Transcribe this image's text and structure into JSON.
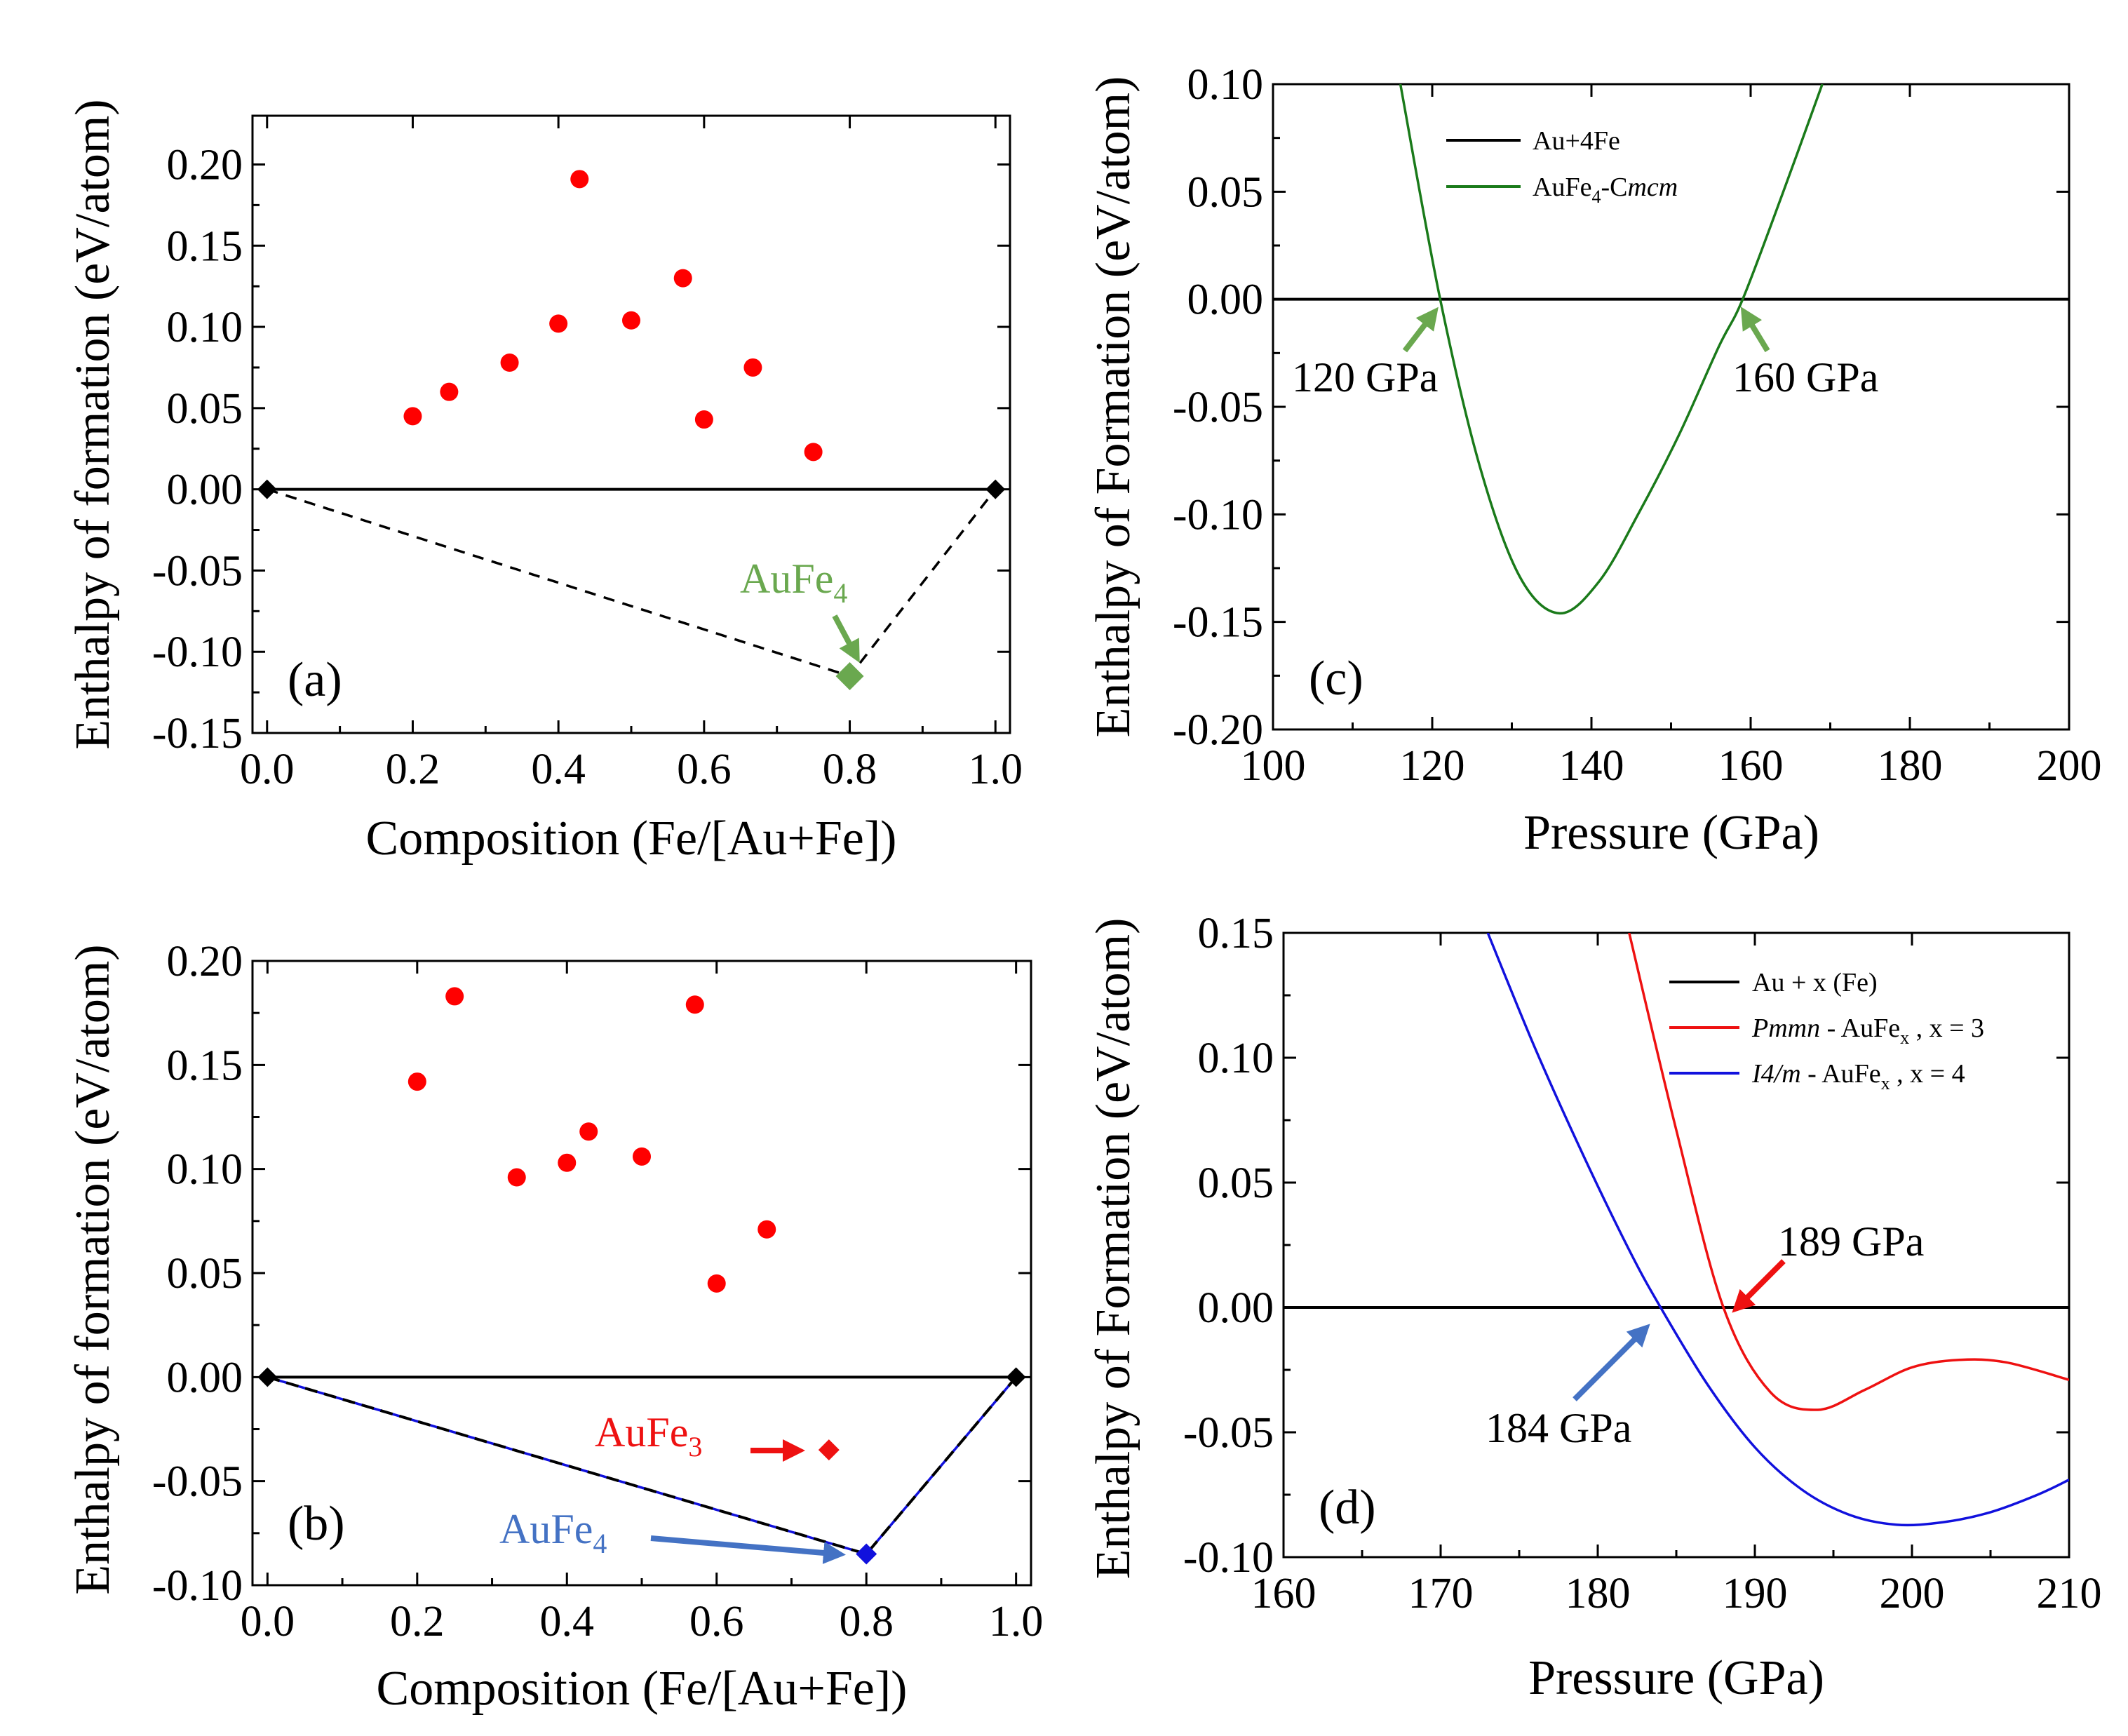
{
  "colors": {
    "unstable_point": "#ff0000",
    "hull_point": "#000000",
    "green": "#6aa84f",
    "curve_green": "#1a7a1a",
    "red": "#ee1111",
    "blue": "#1111dd",
    "annot_blue": "#4472c4"
  },
  "chart_data": [
    {
      "panel": "(a)",
      "type": "scatter",
      "xlabel": "Composition (Fe/[Au+Fe])",
      "ylabel": "Enthalpy of formation (eV/atom)",
      "xlim": [
        -0.02,
        1.02
      ],
      "ylim": [
        -0.15,
        0.23
      ],
      "xticks": [
        "0.0",
        "0.2",
        "0.4",
        "0.6",
        "0.8",
        "1.0"
      ],
      "yticks": [
        "-0.15",
        "-0.10",
        "-0.05",
        "0.00",
        "0.05",
        "0.10",
        "0.15",
        "0.20"
      ],
      "unstable_points": [
        {
          "x": 0.2,
          "y": 0.045
        },
        {
          "x": 0.25,
          "y": 0.06
        },
        {
          "x": 0.333,
          "y": 0.078
        },
        {
          "x": 0.4,
          "y": 0.102
        },
        {
          "x": 0.429,
          "y": 0.191
        },
        {
          "x": 0.5,
          "y": 0.104
        },
        {
          "x": 0.571,
          "y": 0.13
        },
        {
          "x": 0.6,
          "y": 0.043
        },
        {
          "x": 0.667,
          "y": 0.075
        },
        {
          "x": 0.75,
          "y": 0.023
        }
      ],
      "hull_endpoints": [
        {
          "x": 0.0,
          "y": 0.0
        },
        {
          "x": 1.0,
          "y": 0.0
        }
      ],
      "stable_points": [
        {
          "x": 0.8,
          "y": -0.115,
          "name": "AuFe4"
        }
      ],
      "annotations": [
        {
          "base": "AuFe",
          "sub": "4"
        }
      ]
    },
    {
      "panel": "(b)",
      "type": "scatter",
      "xlabel": "Composition (Fe/[Au+Fe])",
      "ylabel": "Enthalpy of formation (eV/atom)",
      "xlim": [
        -0.02,
        1.02
      ],
      "ylim": [
        -0.1,
        0.2
      ],
      "xticks": [
        "0.0",
        "0.2",
        "0.4",
        "0.6",
        "0.8",
        "1.0"
      ],
      "yticks": [
        "-0.10",
        "-0.05",
        "0.00",
        "0.05",
        "0.10",
        "0.15",
        "0.20"
      ],
      "unstable_points": [
        {
          "x": 0.2,
          "y": 0.142
        },
        {
          "x": 0.25,
          "y": 0.183
        },
        {
          "x": 0.333,
          "y": 0.096
        },
        {
          "x": 0.4,
          "y": 0.103
        },
        {
          "x": 0.429,
          "y": 0.118
        },
        {
          "x": 0.5,
          "y": 0.106
        },
        {
          "x": 0.571,
          "y": 0.179
        },
        {
          "x": 0.6,
          "y": 0.045
        },
        {
          "x": 0.667,
          "y": 0.071
        }
      ],
      "hull_endpoints": [
        {
          "x": 0.0,
          "y": 0.0
        },
        {
          "x": 1.0,
          "y": 0.0
        }
      ],
      "metastable_points": [
        {
          "x": 0.75,
          "y": -0.035,
          "name": "AuFe3"
        }
      ],
      "stable_points": [
        {
          "x": 0.8,
          "y": -0.085,
          "name": "AuFe4"
        }
      ],
      "annotations": [
        {
          "base": "AuFe",
          "sub": "3"
        },
        {
          "base": "AuFe",
          "sub": "4"
        }
      ]
    },
    {
      "panel": "(c)",
      "type": "line",
      "xlabel": "Pressure (GPa)",
      "ylabel": "Enthalpy of Formation (eV/atom)",
      "xlim": [
        100,
        200
      ],
      "ylim": [
        -0.2,
        0.1
      ],
      "xticks": [
        "100",
        "120",
        "140",
        "160",
        "180",
        "200"
      ],
      "yticks": [
        "-0.20",
        "-0.15",
        "-0.10",
        "-0.05",
        "0.00",
        "0.05",
        "0.10"
      ],
      "series": [
        {
          "name": "Au+4Fe",
          "x": [
            100,
            200
          ],
          "y": [
            0,
            0
          ]
        },
        {
          "name": "AuFe4-Cmcm",
          "x": [
            116,
            121,
            126,
            131,
            136,
            141,
            146,
            151,
            156,
            159,
            164,
            169
          ],
          "y": [
            0.1,
            0.0,
            -0.078,
            -0.129,
            -0.146,
            -0.131,
            -0.099,
            -0.063,
            -0.022,
            0.0,
            0.049,
            0.1
          ]
        }
      ],
      "legend": [
        {
          "text": "Au+4Fe"
        },
        {
          "base": "AuFe",
          "sub": "4",
          "suffix": "-C",
          "italic": "mcm"
        }
      ],
      "annotations": [
        {
          "text": "120 GPa"
        },
        {
          "text": "160 GPa"
        }
      ]
    },
    {
      "panel": "(d)",
      "type": "line",
      "xlabel": "Pressure (GPa)",
      "ylabel": "Enthalpy of Formation (eV/atom)",
      "xlim": [
        160,
        210
      ],
      "ylim": [
        -0.1,
        0.15
      ],
      "xticks": [
        "160",
        "170",
        "180",
        "190",
        "200",
        "210"
      ],
      "yticks": [
        "-0.10",
        "-0.05",
        "0.00",
        "0.05",
        "0.10",
        "0.15"
      ],
      "series": [
        {
          "name": "Au + x (Fe)",
          "x": [
            160,
            210
          ],
          "y": [
            0,
            0
          ]
        },
        {
          "name": "Pmmn - AuFex , x = 3",
          "x": [
            182,
            185,
            188,
            191,
            194,
            197,
            200,
            203,
            206,
            210
          ],
          "y": [
            0.15,
            0.071,
            0.0,
            -0.034,
            -0.041,
            -0.033,
            -0.024,
            -0.021,
            -0.022,
            -0.029
          ]
        },
        {
          "name": "I4/m - AuFex , x = 4",
          "x": [
            173,
            176,
            179,
            182,
            184,
            187,
            190,
            193,
            196,
            199,
            202,
            205,
            208,
            210
          ],
          "y": [
            0.15,
            0.104,
            0.062,
            0.023,
            0.0,
            -0.031,
            -0.056,
            -0.073,
            -0.083,
            -0.087,
            -0.086,
            -0.082,
            -0.075,
            -0.069
          ]
        }
      ],
      "legend": [
        {
          "text": "Au + x (Fe)"
        },
        {
          "italic": "Pmmn",
          "mid": " - AuFe",
          "sub": "x",
          "suffix": " , x = 3"
        },
        {
          "italic": "I4/m",
          "mid": " - AuFe",
          "sub": "x",
          "suffix": " , x = 4"
        }
      ],
      "annotations": [
        {
          "text": "189 GPa"
        },
        {
          "text": "184 GPa"
        }
      ]
    }
  ]
}
